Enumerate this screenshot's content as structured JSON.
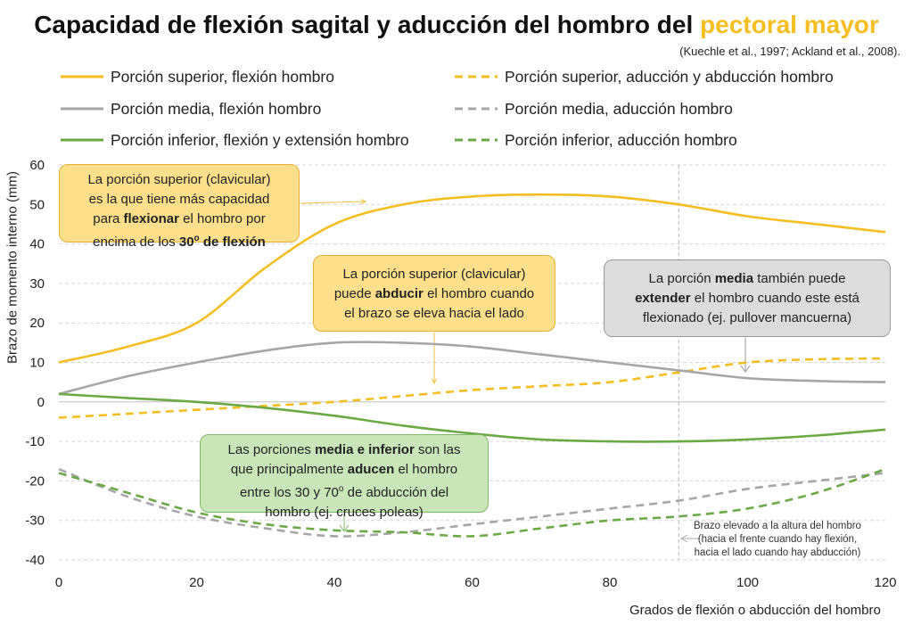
{
  "header": {
    "title_main": "Capacidad de flexión sagital y aducción del hombro del ",
    "title_highlight": "pectoral mayor",
    "source": "(Kuechle et al., 1997; Ackland et al., 2008)."
  },
  "colors": {
    "yellow": "#f5bd1f",
    "gray": "#a6a6a6",
    "green": "#6aaa45"
  },
  "annotations": {
    "a1": {
      "l1": "La porción superior (clavicular)",
      "l2": "es la que tiene más capacidad",
      "l3a": "para ",
      "l3b": "flexionar",
      "l3c": " el hombro por",
      "l4a": "encima de los ",
      "l4b": "30",
      "l4sup": "o",
      "l4c": " de flexión"
    },
    "a2": {
      "l1": "La porción superior (clavicular)",
      "l2a": "puede ",
      "l2b": "abducir",
      "l2c": " el hombro cuando",
      "l3": "el brazo se eleva hacia el lado"
    },
    "a3": {
      "l1a": "La porción ",
      "l1b": "media",
      "l1c": " también puede",
      "l2a": "extender",
      "l2b": " el hombro cuando este está",
      "l3": "flexionado (ej. pullover mancuerna)"
    },
    "a4": {
      "l1a": "Las porciones ",
      "l1b": "media e inferior",
      "l1c": " son las",
      "l2a": "que principalmente ",
      "l2b": "aducen",
      "l2c": " el hombro",
      "l3a": "entre los 30 y 70",
      "l3sup": "o",
      "l3b": " de abducción del",
      "l4": "hombro (ej. cruces poleas)"
    }
  },
  "note": {
    "l1": "Brazo elevado a la altura del hombro",
    "l2": "(hacia el frente cuando hay flexión,",
    "l3": "hacia el lado cuando hay abducción)"
  },
  "chart_data": {
    "type": "line",
    "xlabel": "Grados de flexión o abducción del hombro",
    "ylabel": "Brazo de momento interno (mm)",
    "xlim": [
      0,
      120
    ],
    "ylim": [
      -40,
      60
    ],
    "xticks": [
      0,
      20,
      40,
      60,
      80,
      100,
      120
    ],
    "yticks": [
      60,
      50,
      40,
      30,
      20,
      10,
      0,
      -10,
      -20,
      -30,
      -40
    ],
    "grid": true,
    "reference_line_x": 90,
    "series": [
      {
        "name": "Porción superior, flexión hombro",
        "color": "#f5bd1f",
        "dash": false,
        "x": [
          0,
          10,
          20,
          30,
          40,
          50,
          60,
          70,
          80,
          90,
          100,
          110,
          120
        ],
        "y": [
          10,
          14,
          20,
          34,
          45,
          50,
          52,
          52.5,
          52,
          50,
          47,
          45,
          43
        ]
      },
      {
        "name": "Porción superior, aducción y abducción hombro",
        "color": "#f5bd1f",
        "dash": true,
        "x": [
          0,
          10,
          20,
          30,
          40,
          50,
          60,
          70,
          80,
          90,
          100,
          110,
          120
        ],
        "y": [
          -4,
          -3,
          -2,
          -1,
          0,
          1.5,
          3,
          4,
          5,
          7.5,
          10,
          10.8,
          11
        ]
      },
      {
        "name": "Porción media, flexión hombro",
        "color": "#a6a6a6",
        "dash": false,
        "x": [
          0,
          10,
          20,
          30,
          40,
          50,
          60,
          70,
          80,
          90,
          100,
          110,
          120
        ],
        "y": [
          2,
          6.5,
          10,
          13,
          15,
          15,
          14,
          12,
          10,
          8,
          6,
          5.3,
          5
        ]
      },
      {
        "name": "Porción media, aducción hombro",
        "color": "#a6a6a6",
        "dash": true,
        "x": [
          0,
          10,
          20,
          30,
          40,
          50,
          60,
          70,
          80,
          90,
          100,
          110,
          120
        ],
        "y": [
          -17,
          -24,
          -29,
          -32,
          -34,
          -33,
          -31,
          -29,
          -27,
          -25,
          -22,
          -20,
          -18
        ]
      },
      {
        "name": "Porción inferior, flexión y extensión hombro",
        "color": "#6aaa45",
        "dash": false,
        "x": [
          0,
          10,
          20,
          30,
          40,
          50,
          60,
          70,
          80,
          90,
          100,
          110,
          120
        ],
        "y": [
          2,
          1,
          0,
          -1.5,
          -3.5,
          -6,
          -8,
          -9.5,
          -10,
          -10,
          -9.5,
          -8.5,
          -7
        ]
      },
      {
        "name": "Porción inferior, aducción hombro",
        "color": "#6aaa45",
        "dash": true,
        "x": [
          0,
          10,
          20,
          30,
          40,
          50,
          60,
          70,
          80,
          90,
          100,
          110,
          120
        ],
        "y": [
          -18,
          -23,
          -28,
          -31,
          -32.5,
          -33,
          -34,
          -32,
          -30,
          -29,
          -27,
          -23,
          -17
        ]
      }
    ]
  }
}
